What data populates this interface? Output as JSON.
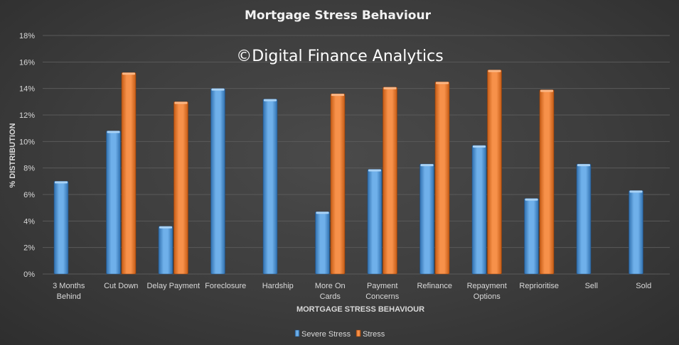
{
  "chart_data": {
    "type": "bar",
    "title": "Mortgage Stress Behaviour",
    "watermark": "©Digital Finance Analytics",
    "xlabel": "MORTGAGE STRESS BEHAVIOUR",
    "ylabel": "% DISTRIBUTION",
    "ylim": [
      0,
      18
    ],
    "yticks": [
      "0%",
      "2%",
      "4%",
      "6%",
      "8%",
      "10%",
      "12%",
      "14%",
      "16%",
      "18%"
    ],
    "grid": true,
    "legend_position": "bottom",
    "categories": [
      [
        "3 Months",
        "Behind"
      ],
      [
        "Cut Down"
      ],
      [
        "Delay Payment"
      ],
      [
        "Foreclosure"
      ],
      [
        "Hardship"
      ],
      [
        "More On",
        "Cards"
      ],
      [
        "Payment",
        "Concerns"
      ],
      [
        "Refinance"
      ],
      [
        "Repayment",
        "Options"
      ],
      [
        "Reprioritise"
      ],
      [
        "Sell"
      ],
      [
        "Sold"
      ]
    ],
    "series": [
      {
        "name": "Severe Stress",
        "color": "#5b9bd5",
        "values": [
          7.0,
          10.8,
          3.6,
          14.0,
          13.2,
          4.7,
          7.9,
          8.3,
          9.7,
          5.7,
          8.3,
          6.3
        ]
      },
      {
        "name": "Stress",
        "color": "#ed7d31",
        "values": [
          null,
          15.2,
          13.0,
          null,
          null,
          13.6,
          14.1,
          14.5,
          15.4,
          13.9,
          null,
          null
        ]
      }
    ]
  }
}
